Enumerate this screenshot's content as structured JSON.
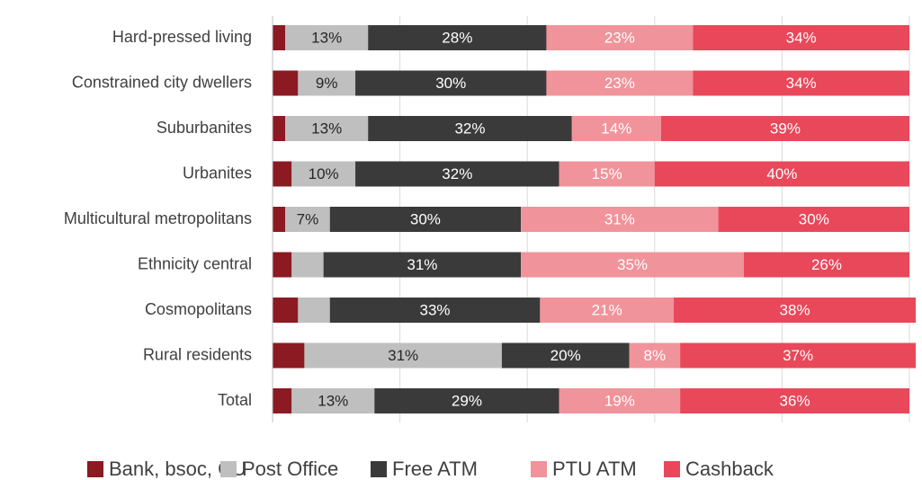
{
  "chart_data": {
    "type": "stacked_bar_horizontal",
    "categories": [
      "Hard-pressed living",
      "Constrained city dwellers",
      "Suburbanites",
      "Urbanites",
      "Multicultural metropolitans",
      "Ethnicity central",
      "Cosmopolitans",
      "Rural residents",
      "Total"
    ],
    "series": [
      {
        "name": "Bank, bsoc, CU",
        "color": "#8b1a22",
        "values": [
          2,
          4,
          2,
          3,
          2,
          3,
          4,
          5,
          3
        ],
        "value_labels": [
          null,
          null,
          null,
          null,
          null,
          null,
          null,
          null,
          null
        ]
      },
      {
        "name": "Post Office",
        "color": "#bfbfbf",
        "values": [
          13,
          9,
          13,
          10,
          7,
          5,
          5,
          31,
          13
        ],
        "value_labels": [
          "13%",
          "9%",
          "13%",
          "10%",
          "7%",
          null,
          null,
          "31%",
          "13%"
        ]
      },
      {
        "name": "Free ATM",
        "color": "#3a3a3a",
        "values": [
          28,
          30,
          32,
          32,
          30,
          31,
          33,
          20,
          29
        ],
        "value_labels": [
          "28%",
          "30%",
          "32%",
          "32%",
          "30%",
          "31%",
          "33%",
          "20%",
          "29%"
        ]
      },
      {
        "name": "PTU ATM",
        "color": "#f0939a",
        "values": [
          23,
          23,
          14,
          15,
          31,
          35,
          21,
          8,
          19
        ],
        "value_labels": [
          "23%",
          "23%",
          "14%",
          "15%",
          "31%",
          "35%",
          "21%",
          "8%",
          "19%"
        ]
      },
      {
        "name": "Cashback",
        "color": "#e8485a",
        "values": [
          34,
          34,
          39,
          40,
          30,
          26,
          38,
          37,
          36
        ],
        "value_labels": [
          "34%",
          "34%",
          "39%",
          "40%",
          "30%",
          "26%",
          "38%",
          "37%",
          "36%"
        ]
      }
    ],
    "xlim": [
      0,
      100
    ],
    "xticks": [
      0,
      20,
      40,
      60,
      80,
      100
    ],
    "grid": true,
    "legend": "bottom"
  }
}
